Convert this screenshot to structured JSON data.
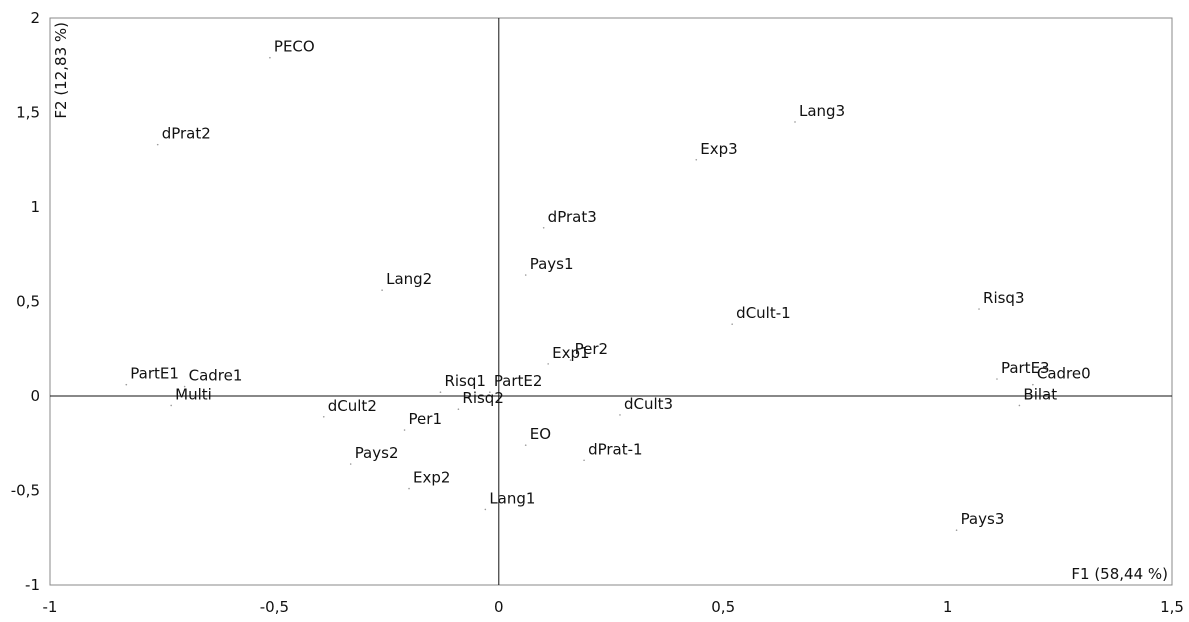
{
  "chart_data": {
    "type": "scatter",
    "xlabel": "F1 (58,44 %)",
    "ylabel": "F2 (12,83 %)",
    "xlim": [
      -1,
      1.5
    ],
    "ylim": [
      -1,
      2
    ],
    "x_ticks": [
      {
        "v": -1,
        "label": "-1"
      },
      {
        "v": -0.5,
        "label": "-0,5"
      },
      {
        "v": 0,
        "label": "0"
      },
      {
        "v": 0.5,
        "label": "0,5"
      },
      {
        "v": 1,
        "label": "1"
      },
      {
        "v": 1.5,
        "label": "1,5"
      }
    ],
    "y_ticks": [
      {
        "v": -1,
        "label": "-1"
      },
      {
        "v": -0.5,
        "label": "-0,5"
      },
      {
        "v": 0,
        "label": "0"
      },
      {
        "v": 0.5,
        "label": "0,5"
      },
      {
        "v": 1,
        "label": "1"
      },
      {
        "v": 1.5,
        "label": "1,5"
      },
      {
        "v": 2,
        "label": "2"
      }
    ],
    "points": [
      {
        "label": "PECO",
        "x": -0.51,
        "y": 1.79
      },
      {
        "label": "dPrat2",
        "x": -0.76,
        "y": 1.33
      },
      {
        "label": "Exp3",
        "x": 0.44,
        "y": 1.25
      },
      {
        "label": "Lang3",
        "x": 0.66,
        "y": 1.45
      },
      {
        "label": "dPrat3",
        "x": 0.1,
        "y": 0.89
      },
      {
        "label": "Pays1",
        "x": 0.06,
        "y": 0.64
      },
      {
        "label": "Lang2",
        "x": -0.26,
        "y": 0.56
      },
      {
        "label": "Risq3",
        "x": 1.07,
        "y": 0.46
      },
      {
        "label": "dCult-1",
        "x": 0.52,
        "y": 0.38
      },
      {
        "label": "Per2",
        "x": 0.16,
        "y": 0.19
      },
      {
        "label": "Exp1",
        "x": 0.11,
        "y": 0.17
      },
      {
        "label": "PartE1",
        "x": -0.83,
        "y": 0.06
      },
      {
        "label": "Cadre1",
        "x": -0.7,
        "y": 0.05
      },
      {
        "label": "Risq1",
        "x": -0.13,
        "y": 0.02
      },
      {
        "label": "PartE2",
        "x": -0.02,
        "y": 0.02
      },
      {
        "label": "PartE3",
        "x": 1.11,
        "y": 0.09
      },
      {
        "label": "Cadre0",
        "x": 1.19,
        "y": 0.06
      },
      {
        "label": "Bilat",
        "x": 1.16,
        "y": -0.05
      },
      {
        "label": "Multi",
        "x": -0.73,
        "y": -0.05
      },
      {
        "label": "dCult2",
        "x": -0.39,
        "y": -0.11
      },
      {
        "label": "Risq2",
        "x": -0.09,
        "y": -0.07
      },
      {
        "label": "dCult3",
        "x": 0.27,
        "y": -0.1
      },
      {
        "label": "Per1",
        "x": -0.21,
        "y": -0.18
      },
      {
        "label": "EO",
        "x": 0.06,
        "y": -0.26
      },
      {
        "label": "dPrat-1",
        "x": 0.19,
        "y": -0.34
      },
      {
        "label": "Pays2",
        "x": -0.33,
        "y": -0.36
      },
      {
        "label": "Exp2",
        "x": -0.2,
        "y": -0.49
      },
      {
        "label": "Lang1",
        "x": -0.03,
        "y": -0.6
      },
      {
        "label": "Pays3",
        "x": 1.02,
        "y": -0.71
      }
    ],
    "grid": false,
    "legend": "none"
  }
}
